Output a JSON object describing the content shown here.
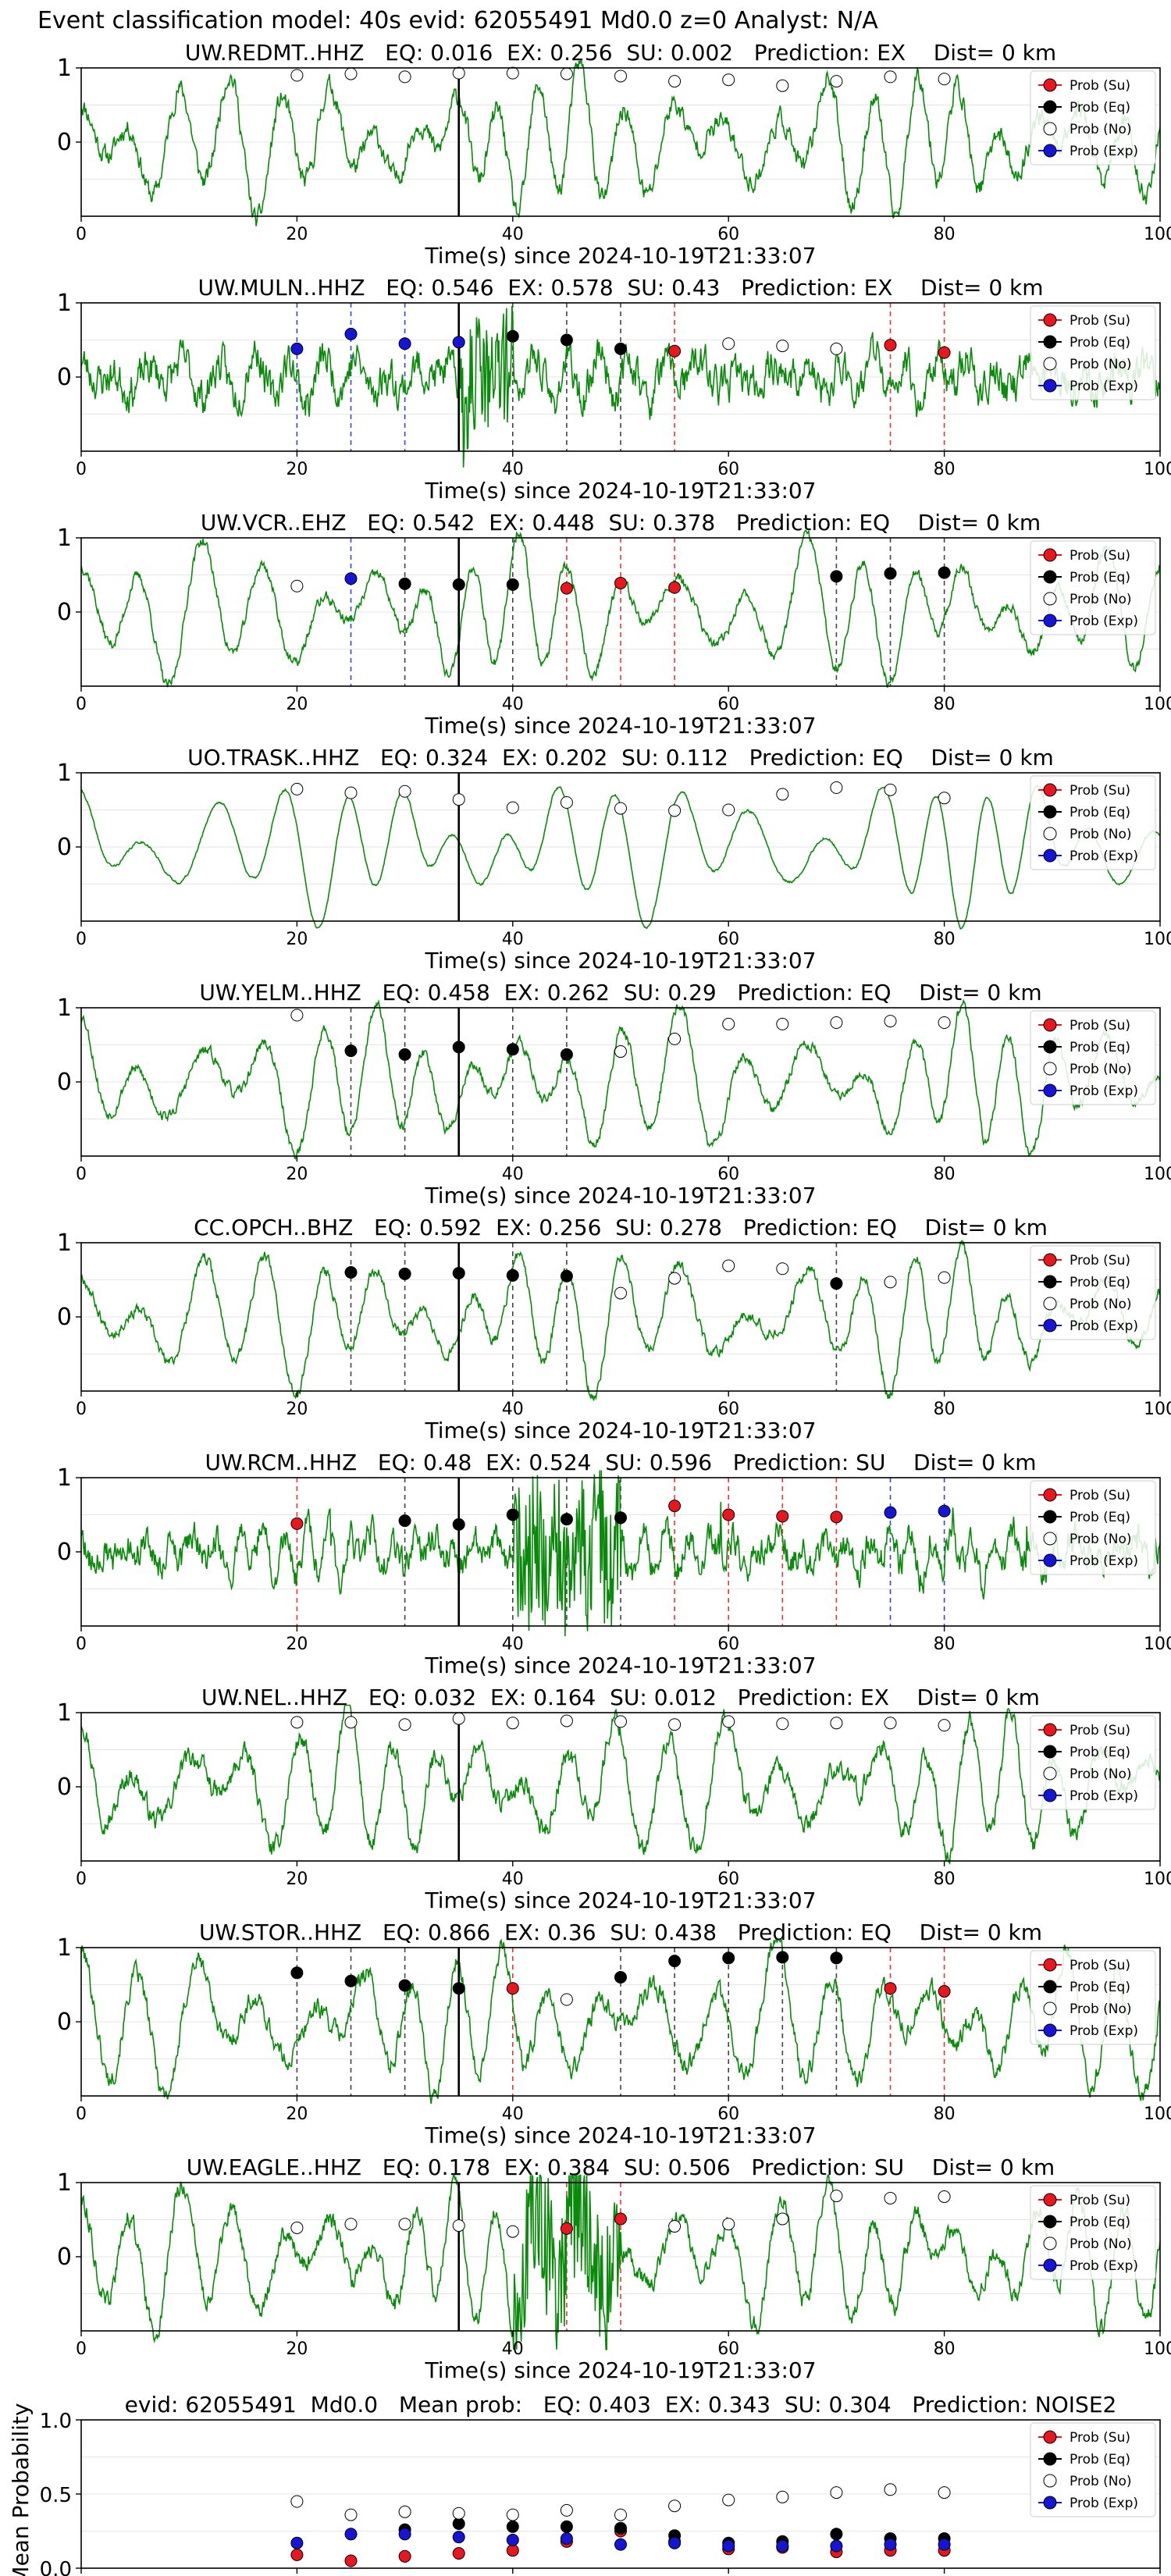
{
  "suptitle": "Event classification model: 40s evid: 62055491 Md0.0 z=0 Analyst: N/A",
  "xlabel": "Time(s) since 2024-10-19T21:33:07",
  "legend": [
    "Prob (Su)",
    "Prob (Eq)",
    "Prob (No)",
    "Prob (Exp)"
  ],
  "colors": {
    "su": "#e8171d",
    "eq": "#000000",
    "no": "#ffffff",
    "exp": "#1515d6",
    "trace": "#0a8a0a",
    "event_line": "#000000"
  },
  "chart_data": [
    {
      "type": "line",
      "title": "UW.REDMT..HHZ   EQ: 0.016  EX: 0.256  SU: 0.002   Prediction: EX    Dist= 0 km",
      "xlim": [
        0,
        100
      ],
      "ylim": [
        -1,
        1
      ],
      "xticks": [
        0,
        20,
        40,
        60,
        80,
        100
      ],
      "yticks": [
        1,
        0
      ],
      "event_time": 35,
      "waveform": {
        "style": "fine",
        "seed": 11,
        "period": 4.2
      },
      "points": [
        {
          "t": 20,
          "cls": "no",
          "p": 0.9
        },
        {
          "t": 25,
          "cls": "no",
          "p": 0.92
        },
        {
          "t": 30,
          "cls": "no",
          "p": 0.88
        },
        {
          "t": 35,
          "cls": "no",
          "p": 0.93
        },
        {
          "t": 40,
          "cls": "no",
          "p": 0.93
        },
        {
          "t": 45,
          "cls": "no",
          "p": 0.92
        },
        {
          "t": 50,
          "cls": "no",
          "p": 0.89
        },
        {
          "t": 55,
          "cls": "no",
          "p": 0.82
        },
        {
          "t": 60,
          "cls": "no",
          "p": 0.84
        },
        {
          "t": 65,
          "cls": "no",
          "p": 0.76
        },
        {
          "t": 70,
          "cls": "no",
          "p": 0.82
        },
        {
          "t": 75,
          "cls": "no",
          "p": 0.88
        },
        {
          "t": 80,
          "cls": "no",
          "p": 0.85
        }
      ]
    },
    {
      "type": "line",
      "title": "UW.MULN..HHZ   EQ: 0.546  EX: 0.578  SU: 0.43   Prediction: EX    Dist= 0 km",
      "xlim": [
        0,
        100
      ],
      "ylim": [
        -1,
        1
      ],
      "xticks": [
        0,
        20,
        40,
        60,
        80,
        100
      ],
      "yticks": [
        1,
        0
      ],
      "event_time": 35,
      "waveform": {
        "style": "noisy",
        "seed": 23,
        "period": 3.0,
        "burst": [
          35,
          40
        ]
      },
      "points": [
        {
          "t": 20,
          "cls": "exp",
          "p": 0.38
        },
        {
          "t": 25,
          "cls": "exp",
          "p": 0.58
        },
        {
          "t": 30,
          "cls": "exp",
          "p": 0.45
        },
        {
          "t": 35,
          "cls": "exp",
          "p": 0.47
        },
        {
          "t": 40,
          "cls": "eq",
          "p": 0.55
        },
        {
          "t": 45,
          "cls": "eq",
          "p": 0.5
        },
        {
          "t": 50,
          "cls": "eq",
          "p": 0.38
        },
        {
          "t": 55,
          "cls": "su",
          "p": 0.35
        },
        {
          "t": 60,
          "cls": "no",
          "p": 0.45
        },
        {
          "t": 65,
          "cls": "no",
          "p": 0.42
        },
        {
          "t": 70,
          "cls": "no",
          "p": 0.38
        },
        {
          "t": 75,
          "cls": "su",
          "p": 0.43
        },
        {
          "t": 80,
          "cls": "su",
          "p": 0.33
        }
      ]
    },
    {
      "type": "line",
      "title": "UW.VCR..EHZ   EQ: 0.542  EX: 0.448  SU: 0.378   Prediction: EQ    Dist= 0 km",
      "xlim": [
        0,
        100
      ],
      "ylim": [
        -1,
        1
      ],
      "xticks": [
        0,
        20,
        40,
        60,
        80,
        100
      ],
      "yticks": [
        1,
        0
      ],
      "event_time": 35,
      "waveform": {
        "style": "smooth",
        "seed": 37,
        "period": 5.0
      },
      "points": [
        {
          "t": 20,
          "cls": "no",
          "p": 0.35
        },
        {
          "t": 25,
          "cls": "exp",
          "p": 0.45
        },
        {
          "t": 30,
          "cls": "eq",
          "p": 0.38
        },
        {
          "t": 35,
          "cls": "eq",
          "p": 0.37
        },
        {
          "t": 40,
          "cls": "eq",
          "p": 0.37
        },
        {
          "t": 45,
          "cls": "su",
          "p": 0.32
        },
        {
          "t": 50,
          "cls": "su",
          "p": 0.39
        },
        {
          "t": 55,
          "cls": "su",
          "p": 0.33
        },
        {
          "t": 70,
          "cls": "eq",
          "p": 0.48
        },
        {
          "t": 75,
          "cls": "eq",
          "p": 0.52
        },
        {
          "t": 80,
          "cls": "eq",
          "p": 0.53
        }
      ]
    },
    {
      "type": "line",
      "title": "UO.TRASK..HHZ   EQ: 0.324  EX: 0.202  SU: 0.112   Prediction: EQ    Dist= 0 km",
      "xlim": [
        0,
        100
      ],
      "ylim": [
        -1,
        1
      ],
      "xticks": [
        0,
        20,
        40,
        60,
        80,
        100
      ],
      "yticks": [
        1,
        0
      ],
      "event_time": 35,
      "waveform": {
        "style": "clean",
        "seed": 41,
        "period": 5.5
      },
      "points": [
        {
          "t": 20,
          "cls": "no",
          "p": 0.78
        },
        {
          "t": 25,
          "cls": "no",
          "p": 0.73
        },
        {
          "t": 30,
          "cls": "no",
          "p": 0.75
        },
        {
          "t": 35,
          "cls": "no",
          "p": 0.64
        },
        {
          "t": 40,
          "cls": "no",
          "p": 0.53
        },
        {
          "t": 45,
          "cls": "no",
          "p": 0.6
        },
        {
          "t": 50,
          "cls": "no",
          "p": 0.52
        },
        {
          "t": 55,
          "cls": "no",
          "p": 0.49
        },
        {
          "t": 60,
          "cls": "no",
          "p": 0.5
        },
        {
          "t": 65,
          "cls": "no",
          "p": 0.71
        },
        {
          "t": 70,
          "cls": "no",
          "p": 0.8
        },
        {
          "t": 75,
          "cls": "no",
          "p": 0.77
        },
        {
          "t": 80,
          "cls": "no",
          "p": 0.66
        }
      ]
    },
    {
      "type": "line",
      "title": "UW.YELM..HHZ   EQ: 0.458  EX: 0.262  SU: 0.29   Prediction: EQ    Dist= 0 km",
      "xlim": [
        0,
        100
      ],
      "ylim": [
        -1,
        1
      ],
      "xticks": [
        0,
        20,
        40,
        60,
        80,
        100
      ],
      "yticks": [
        1,
        0
      ],
      "event_time": 35,
      "waveform": {
        "style": "smooth",
        "seed": 53,
        "period": 5.0
      },
      "points": [
        {
          "t": 20,
          "cls": "no",
          "p": 0.9
        },
        {
          "t": 25,
          "cls": "eq",
          "p": 0.42
        },
        {
          "t": 30,
          "cls": "eq",
          "p": 0.37
        },
        {
          "t": 35,
          "cls": "eq",
          "p": 0.47
        },
        {
          "t": 40,
          "cls": "eq",
          "p": 0.44
        },
        {
          "t": 45,
          "cls": "eq",
          "p": 0.37
        },
        {
          "t": 50,
          "cls": "no",
          "p": 0.41
        },
        {
          "t": 55,
          "cls": "no",
          "p": 0.58
        },
        {
          "t": 60,
          "cls": "no",
          "p": 0.78
        },
        {
          "t": 65,
          "cls": "no",
          "p": 0.78
        },
        {
          "t": 70,
          "cls": "no",
          "p": 0.8
        },
        {
          "t": 75,
          "cls": "no",
          "p": 0.82
        },
        {
          "t": 80,
          "cls": "no",
          "p": 0.8
        }
      ]
    },
    {
      "type": "line",
      "title": "CC.OPCH..BHZ   EQ: 0.592  EX: 0.256  SU: 0.278   Prediction: EQ    Dist= 0 km",
      "xlim": [
        0,
        100
      ],
      "ylim": [
        -1,
        1
      ],
      "xticks": [
        0,
        20,
        40,
        60,
        80,
        100
      ],
      "yticks": [
        1,
        0
      ],
      "event_time": 35,
      "waveform": {
        "style": "smooth",
        "seed": 67,
        "period": 5.0
      },
      "points": [
        {
          "t": 25,
          "cls": "eq",
          "p": 0.6
        },
        {
          "t": 30,
          "cls": "eq",
          "p": 0.58
        },
        {
          "t": 35,
          "cls": "eq",
          "p": 0.59
        },
        {
          "t": 40,
          "cls": "eq",
          "p": 0.56
        },
        {
          "t": 45,
          "cls": "eq",
          "p": 0.55
        },
        {
          "t": 50,
          "cls": "no",
          "p": 0.32
        },
        {
          "t": 55,
          "cls": "no",
          "p": 0.52
        },
        {
          "t": 60,
          "cls": "no",
          "p": 0.69
        },
        {
          "t": 65,
          "cls": "no",
          "p": 0.65
        },
        {
          "t": 70,
          "cls": "eq",
          "p": 0.45
        },
        {
          "t": 75,
          "cls": "no",
          "p": 0.47
        },
        {
          "t": 80,
          "cls": "no",
          "p": 0.53
        }
      ]
    },
    {
      "type": "line",
      "title": "UW.RCM..HHZ   EQ: 0.48  EX: 0.524  SU: 0.596   Prediction: SU    Dist= 0 km",
      "xlim": [
        0,
        100
      ],
      "ylim": [
        -1,
        1
      ],
      "xticks": [
        0,
        20,
        40,
        60,
        80,
        100
      ],
      "yticks": [
        1,
        0
      ],
      "event_time": 35,
      "waveform": {
        "style": "spiky",
        "seed": 79,
        "period": 2.0,
        "burst": [
          40,
          50
        ]
      },
      "points": [
        {
          "t": 20,
          "cls": "su",
          "p": 0.38
        },
        {
          "t": 30,
          "cls": "eq",
          "p": 0.42
        },
        {
          "t": 35,
          "cls": "eq",
          "p": 0.37
        },
        {
          "t": 40,
          "cls": "eq",
          "p": 0.5
        },
        {
          "t": 45,
          "cls": "eq",
          "p": 0.44
        },
        {
          "t": 50,
          "cls": "eq",
          "p": 0.46
        },
        {
          "t": 55,
          "cls": "su",
          "p": 0.62
        },
        {
          "t": 60,
          "cls": "su",
          "p": 0.5
        },
        {
          "t": 65,
          "cls": "su",
          "p": 0.48
        },
        {
          "t": 70,
          "cls": "su",
          "p": 0.47
        },
        {
          "t": 75,
          "cls": "exp",
          "p": 0.53
        },
        {
          "t": 80,
          "cls": "exp",
          "p": 0.55
        }
      ]
    },
    {
      "type": "line",
      "title": "UW.NEL..HHZ   EQ: 0.032  EX: 0.164  SU: 0.012   Prediction: EX    Dist= 0 km",
      "xlim": [
        0,
        100
      ],
      "ylim": [
        -1,
        1
      ],
      "xticks": [
        0,
        20,
        40,
        60,
        80,
        100
      ],
      "yticks": [
        1,
        0
      ],
      "event_time": 35,
      "waveform": {
        "style": "fine",
        "seed": 97,
        "period": 4.5
      },
      "points": [
        {
          "t": 20,
          "cls": "no",
          "p": 0.87
        },
        {
          "t": 25,
          "cls": "no",
          "p": 0.87
        },
        {
          "t": 30,
          "cls": "no",
          "p": 0.84
        },
        {
          "t": 35,
          "cls": "no",
          "p": 0.92
        },
        {
          "t": 40,
          "cls": "no",
          "p": 0.86
        },
        {
          "t": 45,
          "cls": "no",
          "p": 0.89
        },
        {
          "t": 50,
          "cls": "no",
          "p": 0.88
        },
        {
          "t": 55,
          "cls": "no",
          "p": 0.84
        },
        {
          "t": 60,
          "cls": "no",
          "p": 0.88
        },
        {
          "t": 65,
          "cls": "no",
          "p": 0.85
        },
        {
          "t": 70,
          "cls": "no",
          "p": 0.86
        },
        {
          "t": 75,
          "cls": "no",
          "p": 0.86
        },
        {
          "t": 80,
          "cls": "no",
          "p": 0.83
        }
      ]
    },
    {
      "type": "line",
      "title": "UW.STOR..HHZ   EQ: 0.866  EX: 0.36  SU: 0.438   Prediction: EQ    Dist= 0 km",
      "xlim": [
        0,
        100
      ],
      "ylim": [
        -1,
        1
      ],
      "xticks": [
        0,
        20,
        40,
        60,
        80,
        100
      ],
      "yticks": [
        1,
        0
      ],
      "event_time": 35,
      "waveform": {
        "style": "fine",
        "seed": 101,
        "period": 4.8
      },
      "points": [
        {
          "t": 20,
          "cls": "eq",
          "p": 0.66
        },
        {
          "t": 25,
          "cls": "eq",
          "p": 0.55
        },
        {
          "t": 30,
          "cls": "eq",
          "p": 0.49
        },
        {
          "t": 35,
          "cls": "eq",
          "p": 0.45
        },
        {
          "t": 40,
          "cls": "su",
          "p": 0.45
        },
        {
          "t": 45,
          "cls": "no",
          "p": 0.3
        },
        {
          "t": 50,
          "cls": "eq",
          "p": 0.6
        },
        {
          "t": 55,
          "cls": "eq",
          "p": 0.82
        },
        {
          "t": 60,
          "cls": "eq",
          "p": 0.86
        },
        {
          "t": 65,
          "cls": "eq",
          "p": 0.87
        },
        {
          "t": 70,
          "cls": "eq",
          "p": 0.86
        },
        {
          "t": 75,
          "cls": "su",
          "p": 0.45
        },
        {
          "t": 80,
          "cls": "su",
          "p": 0.41
        }
      ]
    },
    {
      "type": "line",
      "title": "UW.EAGLE..HHZ   EQ: 0.178  EX: 0.384  SU: 0.506   Prediction: SU    Dist= 0 km",
      "xlim": [
        0,
        100
      ],
      "ylim": [
        -1,
        1
      ],
      "xticks": [
        0,
        20,
        40,
        60,
        80,
        100
      ],
      "yticks": [
        1,
        0
      ],
      "event_time": 35,
      "waveform": {
        "style": "fine",
        "seed": 113,
        "period": 4.2,
        "burst": [
          40,
          50
        ]
      },
      "points": [
        {
          "t": 20,
          "cls": "no",
          "p": 0.39
        },
        {
          "t": 25,
          "cls": "no",
          "p": 0.44
        },
        {
          "t": 30,
          "cls": "no",
          "p": 0.44
        },
        {
          "t": 35,
          "cls": "no",
          "p": 0.42
        },
        {
          "t": 40,
          "cls": "no",
          "p": 0.34
        },
        {
          "t": 45,
          "cls": "su",
          "p": 0.38
        },
        {
          "t": 50,
          "cls": "su",
          "p": 0.51
        },
        {
          "t": 55,
          "cls": "no",
          "p": 0.41
        },
        {
          "t": 60,
          "cls": "no",
          "p": 0.44
        },
        {
          "t": 65,
          "cls": "no",
          "p": 0.51
        },
        {
          "t": 70,
          "cls": "no",
          "p": 0.82
        },
        {
          "t": 75,
          "cls": "no",
          "p": 0.79
        },
        {
          "t": 80,
          "cls": "no",
          "p": 0.81
        }
      ]
    },
    {
      "type": "scatter",
      "title": "evid: 62055491  Md0.0   Mean prob:   EQ: 0.403  EX: 0.343  SU: 0.304   Prediction: NOISE2",
      "ylabel": "Mean Probability",
      "xlim": [
        0,
        100
      ],
      "ylim": [
        0,
        1
      ],
      "xticks": [
        0,
        20,
        40,
        60,
        80,
        100
      ],
      "yticks": [
        0,
        0.5,
        1
      ],
      "yticklabels": [
        "0.0",
        "0.5",
        "1.0"
      ],
      "x": [
        20,
        25,
        30,
        35,
        40,
        45,
        50,
        55,
        60,
        65,
        70,
        75,
        80
      ],
      "series": [
        {
          "name": "Prob (Su)",
          "key": "su",
          "values": [
            0.09,
            0.05,
            0.08,
            0.1,
            0.12,
            0.18,
            0.25,
            0.18,
            0.13,
            0.14,
            0.11,
            0.12,
            0.12
          ]
        },
        {
          "name": "Prob (Eq)",
          "key": "eq",
          "values": [
            null,
            null,
            0.26,
            0.3,
            0.28,
            0.28,
            0.27,
            0.22,
            0.17,
            0.18,
            0.23,
            0.2,
            0.2
          ]
        },
        {
          "name": "Prob (No)",
          "key": "no",
          "values": [
            0.45,
            0.36,
            0.38,
            0.37,
            0.36,
            0.39,
            0.36,
            0.42,
            0.46,
            0.48,
            0.51,
            0.53,
            0.51
          ]
        },
        {
          "name": "Prob (Exp)",
          "key": "exp",
          "values": [
            0.17,
            0.23,
            0.23,
            0.21,
            0.19,
            0.2,
            0.16,
            0.17,
            0.15,
            0.15,
            0.15,
            0.16,
            0.16
          ]
        }
      ]
    }
  ]
}
